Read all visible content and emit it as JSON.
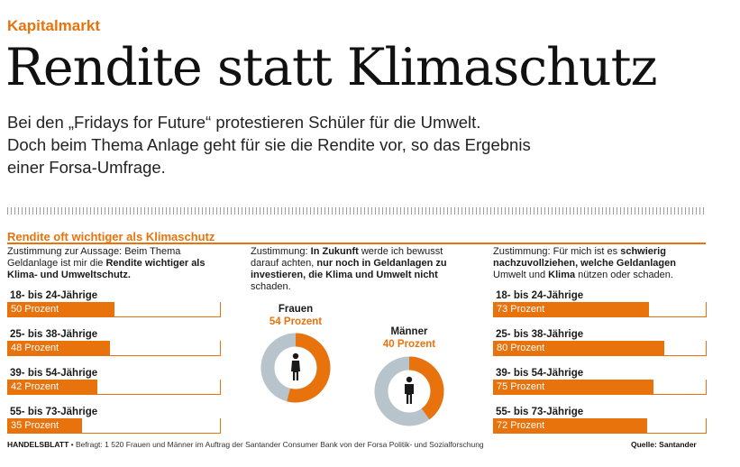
{
  "kicker": "Kapitalmarkt",
  "headline": "Rendite statt Klimaschutz",
  "subline": [
    "Bei den „Fridays for Future“ protestieren Schüler für die Umwelt.",
    "Doch beim Thema Anlage geht für sie die Rendite vor, so das Ergebnis",
    "einer Forsa-Umfrage."
  ],
  "section_title": "Rendite oft wichtiger als Klimaschutz",
  "columns": {
    "left": {
      "desc": [
        {
          "t": "Zustimmung zur Aussage: Beim Thema Geldanlage ist mir die ",
          "b": false
        },
        {
          "t": "Rendite wichtiger als Klima- und Umweltschutz.",
          "b": true
        }
      ]
    },
    "middle": {
      "desc": [
        {
          "t": "Zustimmung: ",
          "b": false
        },
        {
          "t": "In Zukunft",
          "b": true
        },
        {
          "t": " werde ich bewusst darauf achten, ",
          "b": false
        },
        {
          "t": "nur noch in Geldanlagen zu investieren, die Klima und Umwelt nicht",
          "b": true
        },
        {
          "t": " schaden.",
          "b": false
        }
      ]
    },
    "right": {
      "desc": [
        {
          "t": "Zustimmung: Für mich ist es ",
          "b": false
        },
        {
          "t": "schwierig nachzuvollziehen, welche Geldanlagen",
          "b": true
        },
        {
          "t": " Umwelt und ",
          "b": false
        },
        {
          "t": "Klima",
          "b": true
        },
        {
          "t": " nützen oder schaden.",
          "b": false
        }
      ]
    }
  },
  "chart_data": [
    {
      "type": "bar",
      "categories": [
        "18- bis 24-Jährige",
        "25- bis 38-Jährige",
        "39- bis 54-Jährige",
        "55- bis 73-Jährige"
      ],
      "values": [
        50,
        48,
        42,
        35
      ],
      "value_labels": [
        "50 Prozent",
        "48 Prozent",
        "42 Prozent",
        "35 Prozent"
      ],
      "ylim": [
        0,
        100
      ],
      "color": "#e8730c"
    },
    {
      "type": "pie",
      "categories": [
        "Frauen",
        "Männer"
      ],
      "values": [
        54,
        40
      ],
      "value_labels": [
        "54 Prozent",
        "40 Prozent"
      ],
      "colors": {
        "agree": "#e8730c",
        "rest": "#b8c4cc"
      }
    },
    {
      "type": "bar",
      "categories": [
        "18- bis 24-Jährige",
        "25- bis 38-Jährige",
        "39- bis 54-Jährige",
        "55- bis 73-Jährige"
      ],
      "values": [
        73,
        80,
        75,
        72
      ],
      "value_labels": [
        "73 Prozent",
        "80 Prozent",
        "75 Prozent",
        "72 Prozent"
      ],
      "ylim": [
        0,
        100
      ],
      "color": "#e8730c"
    }
  ],
  "footer": {
    "brand": "HANDELSBLATT",
    "note": " • Befragt: 1 520 Frauen und Männer im Auftrag der Santander Consumer Bank von der Forsa Politik- und Sozialforschung",
    "source": "Quelle: Santander"
  }
}
